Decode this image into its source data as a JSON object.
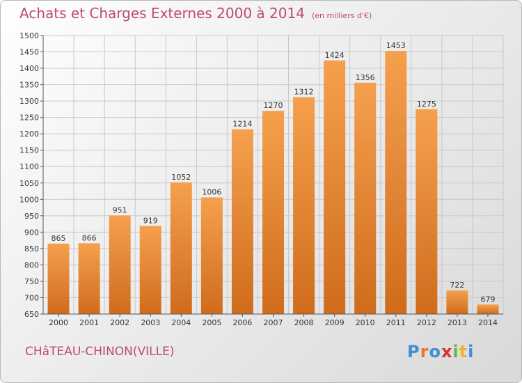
{
  "header": {
    "title": "Achats et Charges Externes 2000 à 2014",
    "unit": "(en milliers d'€)"
  },
  "footer": {
    "location": "CHâTEAU-CHINON(VILLE)",
    "brand": "Proxiti",
    "brand_colors": [
      "#3d8fd6",
      "#e8762c",
      "#3d8fd6",
      "#d9302f",
      "#69b43d",
      "#e8b62c",
      "#3d8fd6"
    ]
  },
  "colors": {
    "accent": "#c04a6b",
    "bar_light": "#f5a04e",
    "bar_dark": "#cf6c1c",
    "grid": "#c8c8c8"
  },
  "chart_data": {
    "type": "bar",
    "title": "Achats et Charges Externes 2000 à 2014",
    "subtitle": "(en milliers d'€)",
    "categories": [
      "2000",
      "2001",
      "2002",
      "2003",
      "2004",
      "2005",
      "2006",
      "2007",
      "2008",
      "2009",
      "2010",
      "2011",
      "2012",
      "2013",
      "2014"
    ],
    "values": [
      865,
      866,
      951,
      919,
      1052,
      1006,
      1214,
      1270,
      1312,
      1424,
      1356,
      1453,
      1275,
      722,
      679
    ],
    "xlabel": "",
    "ylabel": "",
    "ylim": [
      650,
      1500
    ],
    "yticks": [
      650,
      700,
      750,
      800,
      850,
      900,
      950,
      1000,
      1050,
      1100,
      1150,
      1200,
      1250,
      1300,
      1350,
      1400,
      1450,
      1500
    ],
    "grid": true,
    "data_labels": true
  }
}
